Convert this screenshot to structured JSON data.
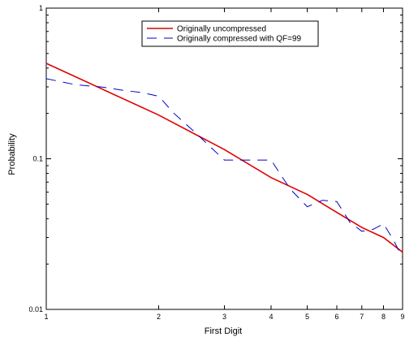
{
  "chart_data": {
    "type": "line",
    "xlabel": "First Digit",
    "ylabel": "Probability",
    "xscale": "log",
    "yscale": "log",
    "xlim": [
      1,
      9
    ],
    "ylim": [
      0.01,
      1
    ],
    "x_ticks": [
      {
        "value": 1,
        "label": "1"
      },
      {
        "value": 2,
        "label": "2"
      },
      {
        "value": 3,
        "label": "3"
      },
      {
        "value": 4,
        "label": "4"
      },
      {
        "value": 5,
        "label": "5"
      },
      {
        "value": 6,
        "label": "6"
      },
      {
        "value": 7,
        "label": "7"
      },
      {
        "value": 8,
        "label": "8"
      },
      {
        "value": 9,
        "label": "9"
      }
    ],
    "y_ticks": [
      {
        "value": 0.01,
        "label": "0.01"
      },
      {
        "value": 0.1,
        "label": "0.1"
      },
      {
        "value": 1,
        "label": "1"
      }
    ],
    "grid": false,
    "legend_position": "top-center",
    "series": [
      {
        "name": "Originally uncompressed",
        "color": "#e00000",
        "dash": "solid",
        "points": [
          {
            "x": 1,
            "y": 0.43
          },
          {
            "x": 2,
            "y": 0.195
          },
          {
            "x": 3,
            "y": 0.115
          },
          {
            "x": 4,
            "y": 0.075
          },
          {
            "x": 5,
            "y": 0.058
          },
          {
            "x": 6,
            "y": 0.044
          },
          {
            "x": 7,
            "y": 0.035
          },
          {
            "x": 8,
            "y": 0.03
          },
          {
            "x": 9,
            "y": 0.024
          }
        ]
      },
      {
        "name": "Originally compressed with QF=99",
        "color": "#0000cc",
        "dash": "dashed",
        "points": [
          {
            "x": 1,
            "y": 0.34
          },
          {
            "x": 1.2,
            "y": 0.31
          },
          {
            "x": 1.4,
            "y": 0.3
          },
          {
            "x": 1.6,
            "y": 0.285
          },
          {
            "x": 1.8,
            "y": 0.275
          },
          {
            "x": 2,
            "y": 0.26
          },
          {
            "x": 2.2,
            "y": 0.2
          },
          {
            "x": 2.5,
            "y": 0.15
          },
          {
            "x": 2.75,
            "y": 0.12
          },
          {
            "x": 3,
            "y": 0.098
          },
          {
            "x": 3.5,
            "y": 0.098
          },
          {
            "x": 4,
            "y": 0.098
          },
          {
            "x": 4.5,
            "y": 0.063
          },
          {
            "x": 5,
            "y": 0.048
          },
          {
            "x": 5.5,
            "y": 0.053
          },
          {
            "x": 6,
            "y": 0.052
          },
          {
            "x": 6.5,
            "y": 0.038
          },
          {
            "x": 7,
            "y": 0.033
          },
          {
            "x": 7.5,
            "y": 0.034
          },
          {
            "x": 8,
            "y": 0.037
          },
          {
            "x": 8.5,
            "y": 0.029
          },
          {
            "x": 9,
            "y": 0.022
          }
        ]
      }
    ]
  }
}
